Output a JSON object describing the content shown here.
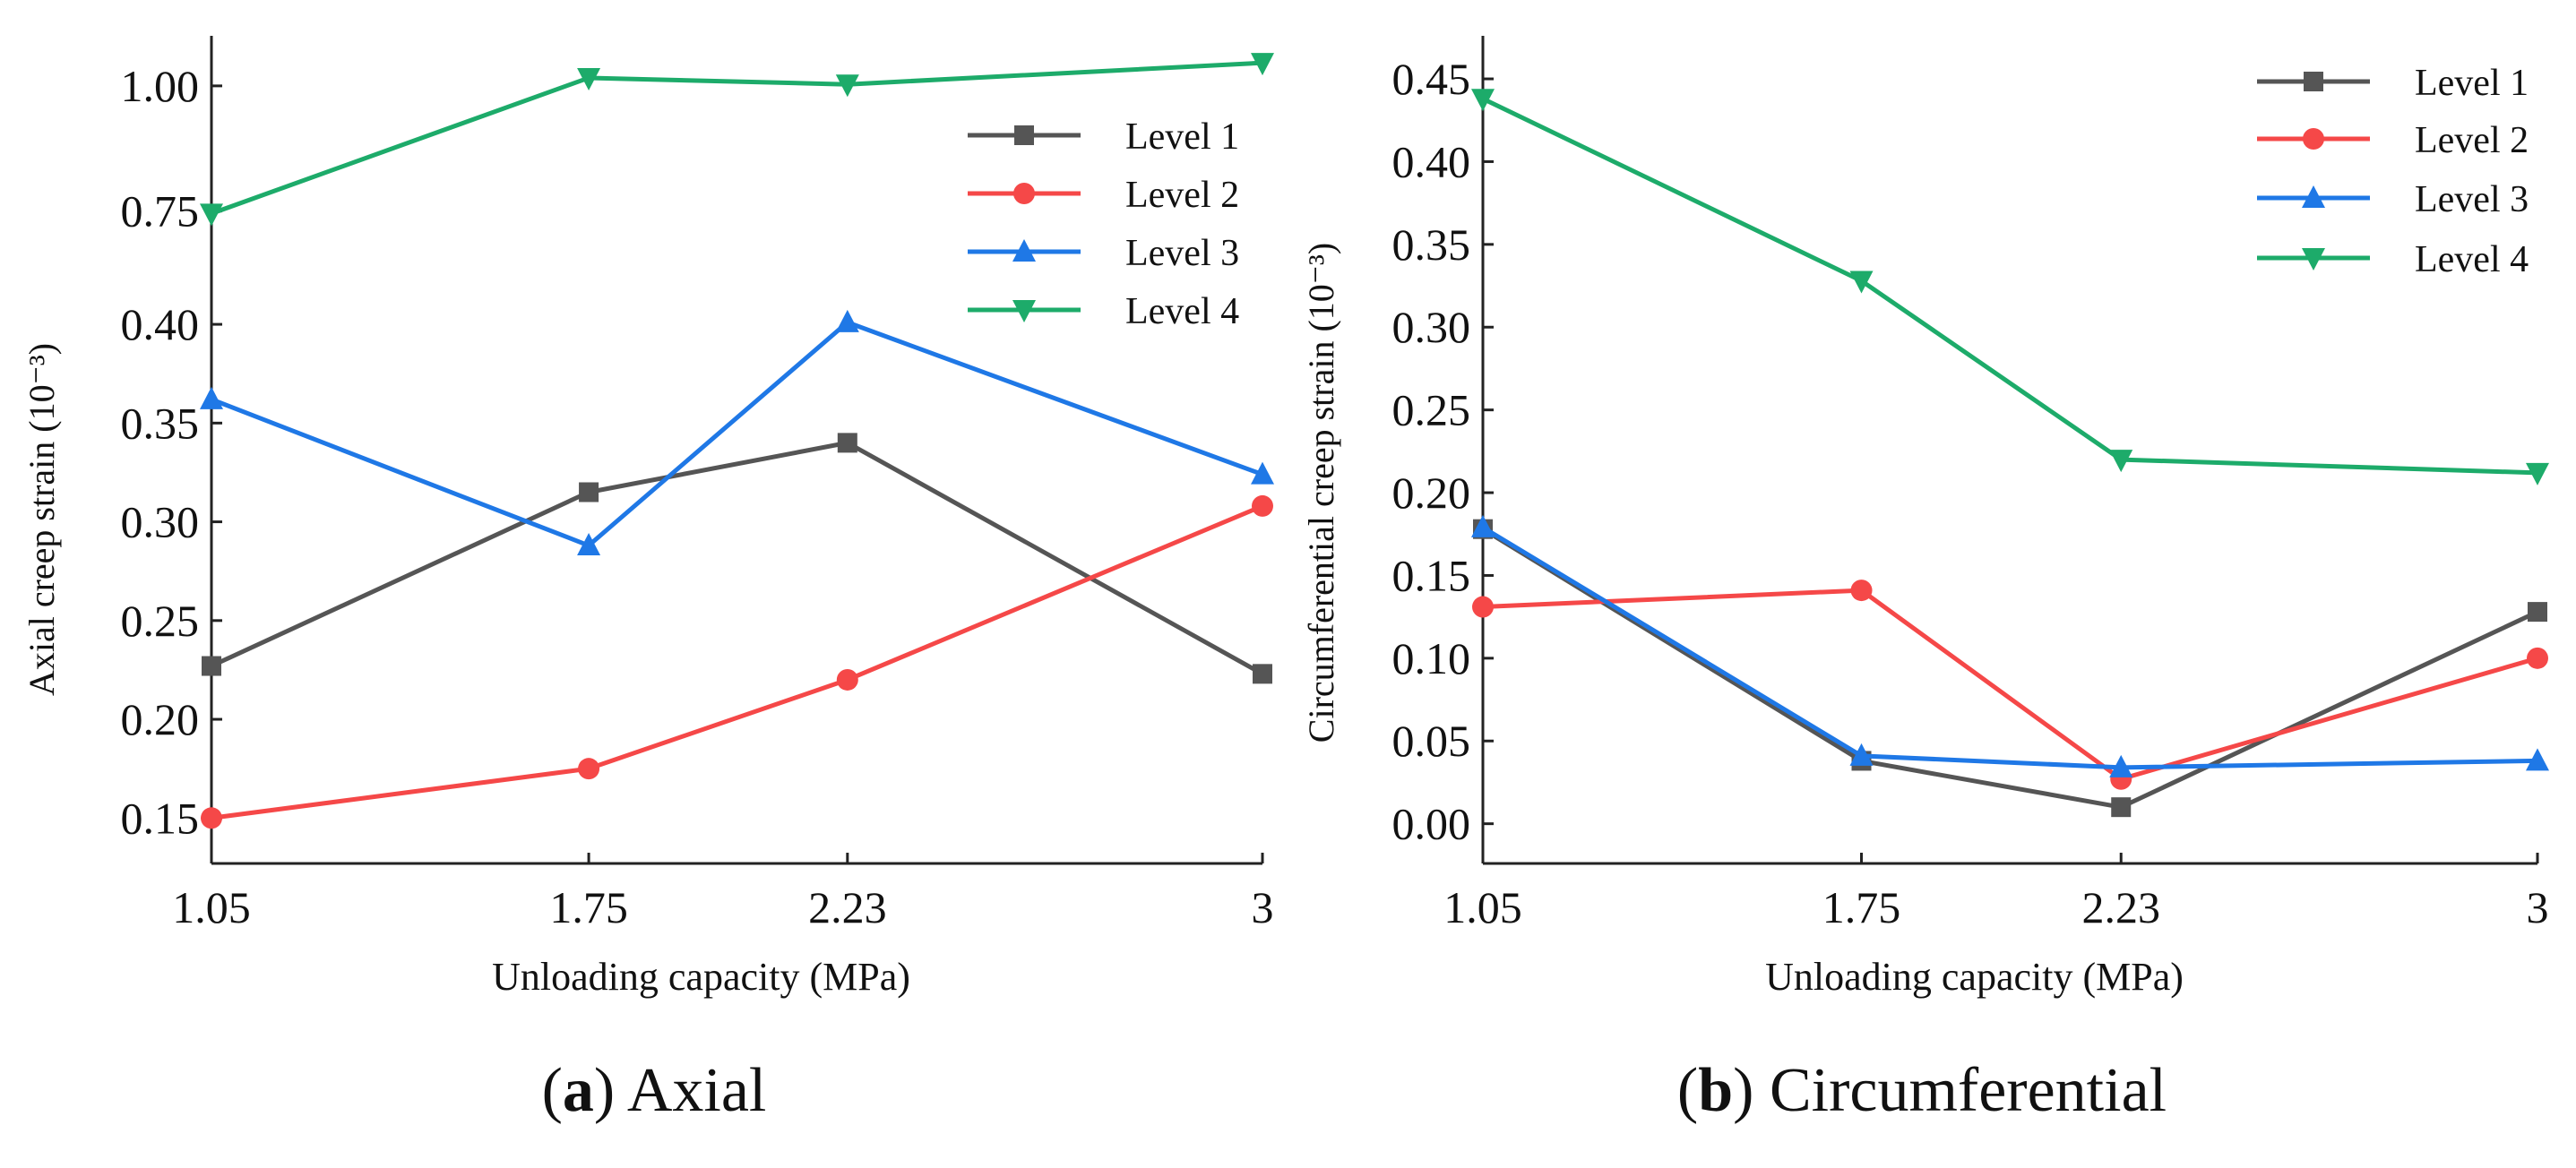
{
  "colors": {
    "Level 1": "#555555",
    "Level 2": "#f54848",
    "Level 3": "#1f78e6",
    "Level 4": "#1dab6a"
  },
  "chart_data": [
    {
      "type": "line",
      "caption_letter": "a",
      "caption_text": "Axial",
      "xlabel": "Unloading capacity (MPa)",
      "ylabel": "Axial creep strain (10⁻³)",
      "x": [
        1.05,
        1.75,
        2.23,
        3
      ],
      "x_tick_labels": [
        "1.05",
        "1.75",
        "2.23",
        "3"
      ],
      "xlim": [
        1.05,
        3
      ],
      "broken_y_axis": true,
      "ylim_lower": [
        0.127,
        0.42
      ],
      "ylim_upper": [
        0.59,
        1.1
      ],
      "y_ticks": [
        0.15,
        0.2,
        0.25,
        0.3,
        0.35,
        0.4,
        0.75,
        1.0
      ],
      "y_tick_labels": [
        "0.15",
        "0.20",
        "0.25",
        "0.30",
        "0.35",
        "0.40",
        "0.75",
        "1.00"
      ],
      "legend_position": "top-right",
      "grid": false,
      "series": [
        {
          "name": "Level 1",
          "marker": "square",
          "values": [
            0.227,
            0.315,
            0.34,
            0.223
          ]
        },
        {
          "name": "Level 2",
          "marker": "circle",
          "values": [
            0.15,
            0.175,
            0.22,
            0.308
          ]
        },
        {
          "name": "Level 3",
          "marker": "triangle-up",
          "values": [
            0.362,
            0.288,
            0.401,
            0.324
          ]
        },
        {
          "name": "Level 4",
          "marker": "triangle-down",
          "values": [
            0.745,
            1.016,
            1.003,
            1.046
          ]
        }
      ]
    },
    {
      "type": "line",
      "caption_letter": "b",
      "caption_text": "Circumferential",
      "xlabel": "Unloading capacity (MPa)",
      "ylabel": "Circumferential creep strain (10⁻³)",
      "x": [
        1.05,
        1.75,
        2.23,
        3
      ],
      "x_tick_labels": [
        "1.05",
        "1.75",
        "2.23",
        "3"
      ],
      "xlim": [
        1.05,
        3
      ],
      "ylim": [
        -0.024,
        0.476
      ],
      "y_ticks": [
        0.0,
        0.05,
        0.1,
        0.15,
        0.2,
        0.25,
        0.3,
        0.35,
        0.4,
        0.45
      ],
      "y_tick_labels": [
        "0.00",
        "0.05",
        "0.10",
        "0.15",
        "0.20",
        "0.25",
        "0.30",
        "0.35",
        "0.40",
        "0.45"
      ],
      "legend_position": "top-right",
      "grid": false,
      "series": [
        {
          "name": "Level 1",
          "marker": "square",
          "values": [
            0.178,
            0.038,
            0.01,
            0.128
          ]
        },
        {
          "name": "Level 2",
          "marker": "circle",
          "values": [
            0.131,
            0.141,
            0.027,
            0.1
          ]
        },
        {
          "name": "Level 3",
          "marker": "triangle-up",
          "values": [
            0.179,
            0.041,
            0.034,
            0.038
          ]
        },
        {
          "name": "Level 4",
          "marker": "triangle-down",
          "values": [
            0.438,
            0.328,
            0.22,
            0.212
          ]
        }
      ]
    }
  ]
}
